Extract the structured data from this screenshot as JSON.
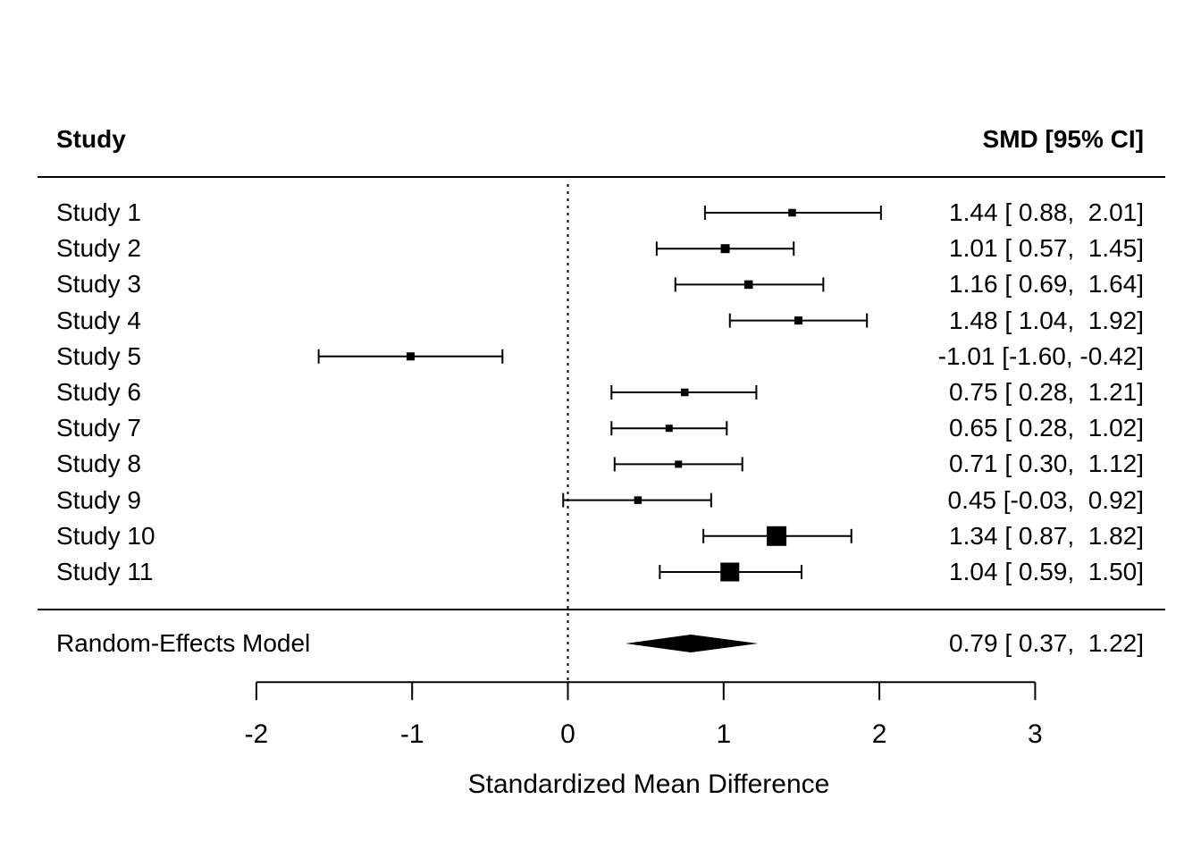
{
  "colors": {
    "ink": "#000000",
    "background": "#ffffff"
  },
  "header": {
    "left": "Study",
    "right": "SMD [95% CI]"
  },
  "chart_data": {
    "type": "forest",
    "xlabel": "Standardized Mean Difference",
    "x_ticks": [
      -2,
      -1,
      0,
      1,
      2,
      3
    ],
    "xlim": [
      -2,
      3
    ],
    "reference_line_x": 0,
    "grid": false,
    "columns": {
      "left_header": "Study",
      "right_header": "SMD [95% CI]"
    },
    "studies": [
      {
        "label": "Study 1",
        "est": 1.44,
        "lo": 0.88,
        "hi": 2.01,
        "text": "1.44 [ 0.88,  2.01]",
        "psize": 8.5
      },
      {
        "label": "Study 2",
        "est": 1.01,
        "lo": 0.57,
        "hi": 1.45,
        "text": "1.01 [ 0.57,  1.45]",
        "psize": 10
      },
      {
        "label": "Study 3",
        "est": 1.16,
        "lo": 0.69,
        "hi": 1.64,
        "text": "1.16 [ 0.69,  1.64]",
        "psize": 9.5
      },
      {
        "label": "Study 4",
        "est": 1.48,
        "lo": 1.04,
        "hi": 1.92,
        "text": "1.48 [ 1.04,  1.92]",
        "psize": 9
      },
      {
        "label": "Study 5",
        "est": -1.01,
        "lo": -1.6,
        "hi": -0.42,
        "text": "-1.01 [-1.60, -0.42]",
        "psize": 9
      },
      {
        "label": "Study 6",
        "est": 0.75,
        "lo": 0.28,
        "hi": 1.21,
        "text": "0.75 [ 0.28,  1.21]",
        "psize": 8.5
      },
      {
        "label": "Study 7",
        "est": 0.65,
        "lo": 0.28,
        "hi": 1.02,
        "text": "0.65 [ 0.28,  1.02]",
        "psize": 8
      },
      {
        "label": "Study 8",
        "est": 0.71,
        "lo": 0.3,
        "hi": 1.12,
        "text": "0.71 [ 0.30,  1.12]",
        "psize": 8
      },
      {
        "label": "Study 9",
        "est": 0.45,
        "lo": -0.03,
        "hi": 0.92,
        "text": "0.45 [-0.03,  0.92]",
        "psize": 8.5
      },
      {
        "label": "Study 10",
        "est": 1.34,
        "lo": 0.87,
        "hi": 1.82,
        "text": "1.34 [ 0.87,  1.82]",
        "psize": 22
      },
      {
        "label": "Study 11",
        "est": 1.04,
        "lo": 0.59,
        "hi": 1.5,
        "text": "1.04 [ 0.59,  1.50]",
        "psize": 21
      }
    ],
    "summary": {
      "label": "Random-Effects Model",
      "est": 0.79,
      "lo": 0.37,
      "hi": 1.22,
      "text": "0.79 [ 0.37,  1.22]"
    }
  }
}
